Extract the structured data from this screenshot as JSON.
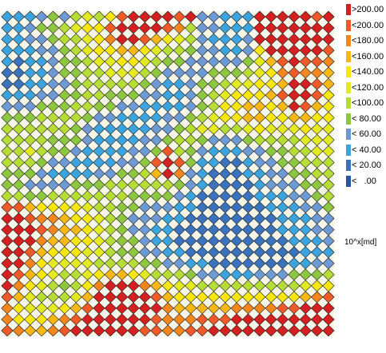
{
  "chart_data": {
    "type": "heatmap",
    "title": "",
    "unit": "10^x[md]",
    "columns": 29,
    "rows": 29,
    "marker": "diamond",
    "legend": {
      "placement": "right",
      "items": [
        {
          "label": ">200.00",
          "color": "#d42020"
        },
        {
          "label": "<200.00",
          "color": "#f05a28"
        },
        {
          "label": "<180.00",
          "color": "#f4861e"
        },
        {
          "label": "<160.00",
          "color": "#f7b717"
        },
        {
          "label": "<140.00",
          "color": "#f7e60f"
        },
        {
          "label": "<120.00",
          "color": "#e3ea22"
        },
        {
          "label": "<100.00",
          "color": "#b6dd35"
        },
        {
          "label": "< 80.00",
          "color": "#8dc63f"
        },
        {
          "label": "< 60.00",
          "color": "#6d99d4"
        },
        {
          "label": "< 40.00",
          "color": "#3ba3dd"
        },
        {
          "label": "< 20.00",
          "color": "#3a72bd"
        },
        {
          "label": "<   .00",
          "color": "#2a55a5"
        }
      ]
    },
    "values": [
      [
        40,
        40,
        40,
        60,
        80,
        60,
        100,
        120,
        100,
        140,
        200,
        220,
        220,
        220,
        220,
        200,
        220,
        60,
        60,
        40,
        40,
        40,
        220,
        220,
        220,
        220,
        220,
        200,
        220
      ],
      [
        40,
        40,
        60,
        80,
        80,
        100,
        120,
        140,
        140,
        200,
        220,
        220,
        220,
        220,
        200,
        180,
        100,
        60,
        60,
        40,
        40,
        40,
        220,
        220,
        220,
        220,
        220,
        220,
        220
      ],
      [
        40,
        40,
        60,
        60,
        80,
        100,
        100,
        120,
        140,
        180,
        220,
        220,
        200,
        160,
        140,
        120,
        100,
        60,
        40,
        40,
        40,
        60,
        220,
        220,
        220,
        220,
        220,
        220,
        220
      ],
      [
        40,
        40,
        40,
        60,
        60,
        80,
        100,
        120,
        140,
        140,
        160,
        160,
        140,
        120,
        100,
        100,
        80,
        60,
        60,
        40,
        40,
        60,
        140,
        220,
        220,
        220,
        220,
        220,
        200
      ],
      [
        40,
        20,
        40,
        40,
        60,
        80,
        80,
        100,
        120,
        120,
        140,
        140,
        120,
        100,
        80,
        80,
        60,
        60,
        60,
        60,
        60,
        80,
        120,
        160,
        200,
        220,
        200,
        200,
        180
      ],
      [
        20,
        20,
        40,
        40,
        60,
        80,
        80,
        100,
        100,
        120,
        120,
        120,
        100,
        80,
        60,
        60,
        60,
        60,
        80,
        80,
        80,
        100,
        120,
        140,
        180,
        200,
        180,
        180,
        160
      ],
      [
        20,
        20,
        40,
        40,
        60,
        60,
        80,
        100,
        100,
        100,
        100,
        100,
        80,
        60,
        40,
        40,
        60,
        80,
        80,
        100,
        120,
        120,
        140,
        140,
        160,
        220,
        220,
        200,
        160
      ],
      [
        40,
        40,
        40,
        60,
        60,
        80,
        80,
        100,
        100,
        80,
        80,
        80,
        60,
        60,
        40,
        40,
        60,
        80,
        100,
        120,
        140,
        140,
        140,
        160,
        200,
        220,
        220,
        200,
        140
      ],
      [
        60,
        60,
        60,
        80,
        80,
        80,
        100,
        100,
        80,
        80,
        60,
        60,
        40,
        40,
        40,
        40,
        60,
        80,
        100,
        140,
        140,
        160,
        160,
        140,
        160,
        220,
        200,
        160,
        140
      ],
      [
        80,
        80,
        80,
        100,
        100,
        100,
        100,
        80,
        60,
        60,
        40,
        40,
        40,
        40,
        60,
        60,
        80,
        100,
        120,
        140,
        140,
        160,
        160,
        140,
        140,
        160,
        160,
        140,
        140
      ],
      [
        100,
        100,
        100,
        100,
        100,
        100,
        80,
        60,
        40,
        40,
        40,
        40,
        40,
        60,
        60,
        80,
        100,
        120,
        120,
        100,
        100,
        120,
        140,
        120,
        120,
        120,
        140,
        120,
        120
      ],
      [
        100,
        100,
        100,
        100,
        80,
        80,
        80,
        60,
        40,
        40,
        40,
        40,
        60,
        60,
        80,
        100,
        100,
        80,
        60,
        60,
        60,
        80,
        100,
        100,
        100,
        100,
        120,
        120,
        120
      ],
      [
        100,
        100,
        120,
        100,
        80,
        80,
        60,
        40,
        40,
        40,
        40,
        60,
        60,
        80,
        200,
        100,
        80,
        60,
        40,
        40,
        40,
        60,
        60,
        80,
        80,
        100,
        100,
        120,
        120
      ],
      [
        100,
        100,
        100,
        80,
        60,
        60,
        40,
        40,
        40,
        40,
        60,
        60,
        80,
        200,
        220,
        200,
        80,
        40,
        40,
        20,
        20,
        40,
        60,
        60,
        80,
        80,
        100,
        100,
        100
      ],
      [
        80,
        80,
        80,
        60,
        40,
        40,
        40,
        40,
        60,
        60,
        80,
        80,
        100,
        160,
        220,
        180,
        60,
        40,
        20,
        20,
        20,
        40,
        40,
        60,
        60,
        80,
        80,
        100,
        100
      ],
      [
        80,
        80,
        60,
        60,
        60,
        60,
        80,
        80,
        80,
        100,
        100,
        100,
        100,
        100,
        100,
        80,
        60,
        40,
        20,
        20,
        20,
        20,
        40,
        60,
        60,
        60,
        80,
        80,
        100
      ],
      [
        100,
        100,
        80,
        80,
        100,
        100,
        100,
        100,
        100,
        100,
        100,
        80,
        80,
        80,
        80,
        60,
        40,
        20,
        20,
        20,
        20,
        20,
        40,
        40,
        40,
        60,
        60,
        80,
        100
      ],
      [
        200,
        200,
        160,
        140,
        140,
        140,
        140,
        120,
        100,
        100,
        80,
        80,
        60,
        60,
        60,
        40,
        40,
        20,
        20,
        20,
        20,
        20,
        20,
        40,
        40,
        40,
        60,
        60,
        80
      ],
      [
        220,
        220,
        200,
        180,
        180,
        160,
        140,
        140,
        120,
        100,
        80,
        60,
        60,
        60,
        40,
        40,
        20,
        20,
        20,
        20,
        20,
        20,
        20,
        20,
        40,
        40,
        40,
        60,
        60
      ],
      [
        220,
        220,
        220,
        200,
        180,
        160,
        160,
        140,
        120,
        100,
        80,
        60,
        60,
        40,
        40,
        20,
        20,
        20,
        20,
        20,
        20,
        20,
        20,
        20,
        40,
        40,
        40,
        60,
        60
      ],
      [
        220,
        220,
        220,
        180,
        160,
        160,
        140,
        140,
        120,
        100,
        80,
        80,
        60,
        40,
        40,
        20,
        20,
        20,
        20,
        20,
        20,
        20,
        20,
        20,
        20,
        40,
        40,
        40,
        60
      ],
      [
        220,
        220,
        200,
        160,
        140,
        140,
        140,
        120,
        120,
        100,
        80,
        80,
        60,
        60,
        40,
        40,
        20,
        20,
        20,
        20,
        20,
        20,
        20,
        20,
        20,
        20,
        40,
        40,
        40
      ],
      [
        220,
        220,
        180,
        140,
        120,
        120,
        120,
        120,
        100,
        100,
        100,
        100,
        80,
        80,
        60,
        60,
        40,
        40,
        20,
        20,
        20,
        20,
        20,
        20,
        20,
        40,
        40,
        60,
        60
      ],
      [
        220,
        200,
        160,
        140,
        120,
        100,
        100,
        120,
        140,
        160,
        160,
        140,
        120,
        100,
        100,
        100,
        80,
        60,
        60,
        40,
        40,
        40,
        60,
        60,
        60,
        80,
        80,
        80,
        100
      ],
      [
        220,
        180,
        140,
        120,
        100,
        80,
        100,
        140,
        180,
        220,
        220,
        220,
        180,
        160,
        140,
        120,
        120,
        100,
        100,
        100,
        100,
        100,
        100,
        100,
        100,
        100,
        120,
        140,
        140
      ],
      [
        200,
        160,
        120,
        100,
        100,
        100,
        120,
        160,
        220,
        220,
        220,
        220,
        220,
        200,
        160,
        140,
        140,
        140,
        140,
        140,
        140,
        140,
        140,
        140,
        140,
        140,
        160,
        180,
        200
      ],
      [
        180,
        140,
        120,
        120,
        120,
        140,
        160,
        200,
        220,
        220,
        220,
        220,
        220,
        220,
        180,
        160,
        160,
        160,
        160,
        160,
        180,
        180,
        180,
        180,
        200,
        200,
        220,
        220,
        220
      ],
      [
        180,
        140,
        140,
        140,
        160,
        180,
        200,
        220,
        220,
        220,
        220,
        220,
        220,
        200,
        180,
        180,
        180,
        200,
        200,
        200,
        220,
        220,
        220,
        220,
        220,
        220,
        220,
        220,
        220
      ],
      [
        200,
        180,
        160,
        160,
        180,
        200,
        220,
        220,
        220,
        220,
        220,
        220,
        200,
        200,
        180,
        180,
        200,
        200,
        220,
        220,
        220,
        220,
        220,
        220,
        220,
        220,
        220,
        220,
        220
      ]
    ]
  }
}
